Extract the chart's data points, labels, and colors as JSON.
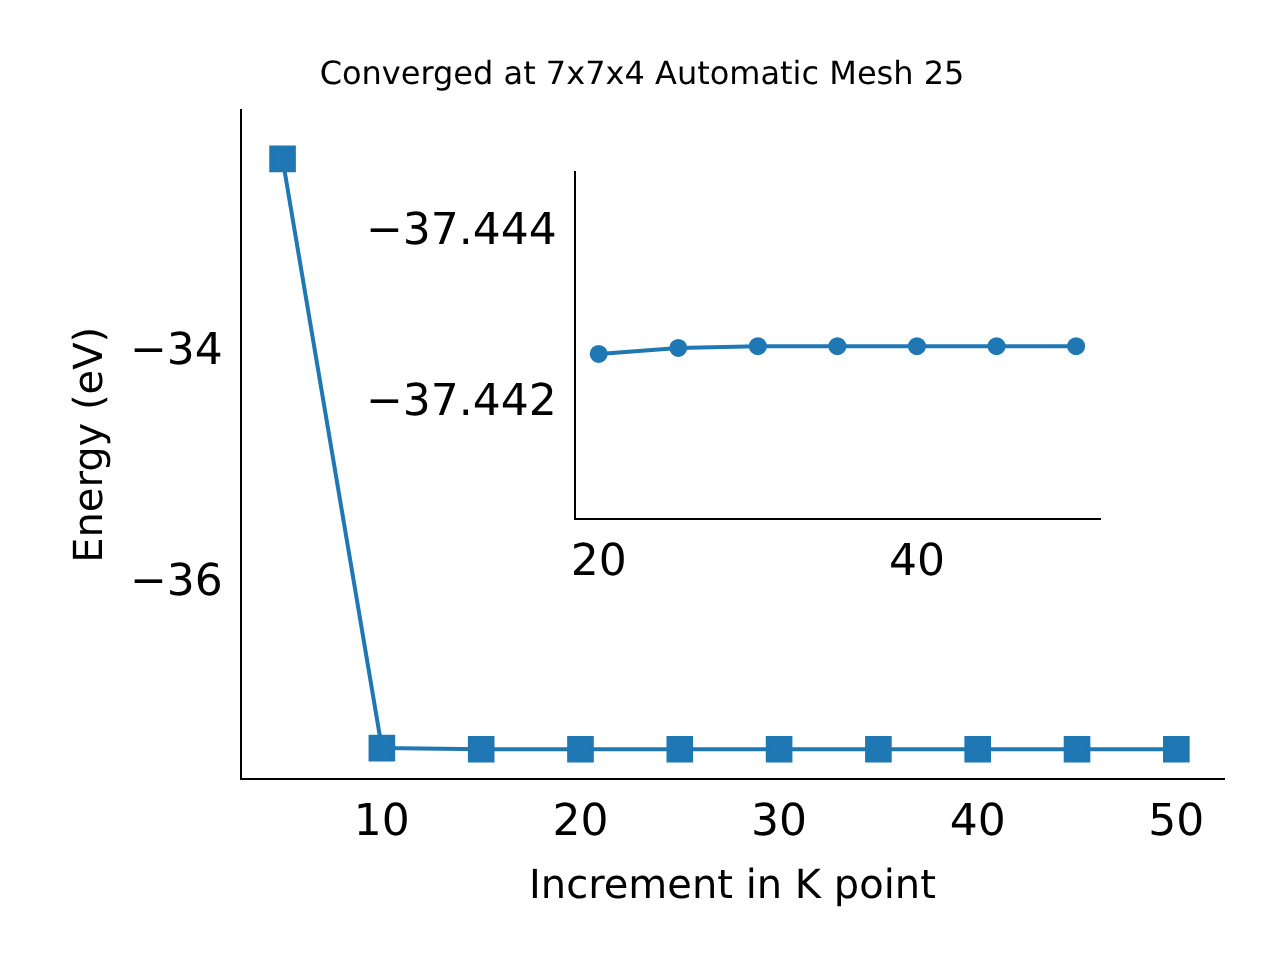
{
  "chart_data": [
    {
      "type": "line",
      "title": "Converged at 7x7x4 Automatic Mesh 25",
      "xlabel": "Increment in K point",
      "ylabel": "Energy (eV)",
      "x": [
        5,
        10,
        15,
        20,
        25,
        30,
        35,
        40,
        45,
        50
      ],
      "values": [
        -32.32,
        -37.43,
        -37.44,
        -37.44,
        -37.44,
        -37.44,
        -37.44,
        -37.44,
        -37.44,
        -37.44
      ],
      "color": "#1f77b4",
      "marker": "square",
      "xlim": [
        2.9,
        52.4
      ],
      "ylim": [
        -37.7,
        -31.9
      ],
      "xticks": [
        10,
        20,
        30,
        40,
        50
      ],
      "yticks": [
        {
          "value": -34,
          "label": "−34"
        },
        {
          "value": -36,
          "label": "−36"
        }
      ]
    },
    {
      "type": "line",
      "x": [
        20,
        25,
        30,
        35,
        40,
        45,
        50
      ],
      "values": [
        -37.44258,
        -37.44265,
        -37.44267,
        -37.44267,
        -37.44267,
        -37.44267,
        -37.44267
      ],
      "color": "#1f77b4",
      "marker": "circle",
      "xlim": [
        18.5,
        51.5
      ],
      "ylim": [
        -37.44065,
        -37.4447
      ],
      "xticks": [
        20,
        40
      ],
      "yticks": [
        {
          "value": -37.444,
          "label": "−37.444"
        },
        {
          "value": -37.442,
          "label": "−37.442"
        }
      ]
    }
  ]
}
